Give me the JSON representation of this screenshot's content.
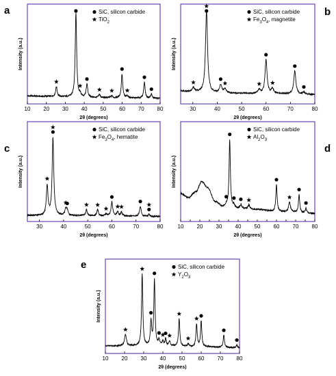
{
  "colors": {
    "frame": "#6a44b4",
    "trace": "#000000",
    "marker": "#000000"
  },
  "chart_data": [
    {
      "panel": "a",
      "type": "line",
      "xlabel": "2θ (degrees)",
      "ylabel": "Intensity (a.u.)",
      "xlim": [
        10,
        80
      ],
      "ylim": [
        0,
        100
      ],
      "xticks": [
        10,
        20,
        30,
        40,
        50,
        60,
        70,
        80
      ],
      "legend_position": "top-right",
      "legend": [
        {
          "symbol": "circle",
          "label": "SiC, silicon carbide"
        },
        {
          "symbol": "star",
          "label": "TiO",
          "sub": "2"
        }
      ],
      "baseline": [
        [
          10,
          8
        ],
        [
          20,
          7.5
        ],
        [
          30,
          7
        ],
        [
          40,
          6.5
        ],
        [
          50,
          6.2
        ],
        [
          60,
          6
        ],
        [
          70,
          5.8
        ],
        [
          80,
          5.6
        ]
      ],
      "peaks": [
        {
          "x": 25.3,
          "y": 10,
          "w": 0.5,
          "marker": "star"
        },
        {
          "x": 35.6,
          "y": 85,
          "w": 0.45,
          "marker": "circle"
        },
        {
          "x": 37.8,
          "y": 3,
          "w": 0.5,
          "marker": "star"
        },
        {
          "x": 41.4,
          "y": 13,
          "w": 0.5,
          "marker": "circle"
        },
        {
          "x": 48.0,
          "y": 3,
          "w": 0.5,
          "marker": "star"
        },
        {
          "x": 54.5,
          "y": 2,
          "w": 0.5,
          "marker": "star"
        },
        {
          "x": 59.9,
          "y": 24,
          "w": 0.45,
          "marker": "circle"
        },
        {
          "x": 62.7,
          "y": 2,
          "w": 0.5,
          "marker": "star"
        },
        {
          "x": 71.7,
          "y": 16,
          "w": 0.45,
          "marker": "circle"
        },
        {
          "x": 75.4,
          "y": 4,
          "w": 0.45,
          "marker": "circle"
        }
      ]
    },
    {
      "panel": "b",
      "type": "line",
      "xlabel": "2θ (degrees)",
      "ylabel": "Intensity (a.u.)",
      "xlim": [
        25,
        80
      ],
      "ylim": [
        0,
        100
      ],
      "xticks": [
        30,
        40,
        50,
        60,
        70,
        80
      ],
      "legend_position": "top-right",
      "legend": [
        {
          "symbol": "circle",
          "label": "SiC, silicon carbide"
        },
        {
          "symbol": "star",
          "label": "Fe",
          "sub": "3",
          "rest": "O",
          "sub2": "4",
          "tail": ", magnetite"
        }
      ],
      "baseline": [
        [
          25,
          13
        ],
        [
          30,
          12
        ],
        [
          40,
          11
        ],
        [
          50,
          10.5
        ],
        [
          60,
          10
        ],
        [
          70,
          10
        ],
        [
          80,
          9.5
        ]
      ],
      "peaks": [
        {
          "x": 30.2,
          "y": 4,
          "w": 0.6,
          "marker": "star"
        },
        {
          "x": 35.6,
          "y": 82,
          "w": 0.5,
          "marker": "circle+star"
        },
        {
          "x": 41.4,
          "y": 8,
          "w": 0.5,
          "marker": "circle"
        },
        {
          "x": 43.2,
          "y": 4,
          "w": 0.6,
          "marker": "star"
        },
        {
          "x": 57.2,
          "y": 4,
          "w": 0.6,
          "marker": "star"
        },
        {
          "x": 60.0,
          "y": 34,
          "w": 0.5,
          "marker": "circle"
        },
        {
          "x": 62.7,
          "y": 5,
          "w": 0.6,
          "marker": "star"
        },
        {
          "x": 71.8,
          "y": 23,
          "w": 0.5,
          "marker": "circle"
        },
        {
          "x": 75.5,
          "y": 2,
          "w": 0.5,
          "marker": "circle"
        }
      ]
    },
    {
      "panel": "c",
      "type": "line",
      "xlabel": "2θ (degrees)",
      "ylabel": "Intensity (a.u.)",
      "xlim": [
        25,
        80
      ],
      "ylim": [
        0,
        100
      ],
      "xticks": [
        30,
        40,
        50,
        60,
        70,
        80
      ],
      "legend_position": "top-right",
      "legend": [
        {
          "symbol": "circle",
          "label": "SiC, silicon carbide"
        },
        {
          "symbol": "star",
          "label": "Fe",
          "sub": "3",
          "rest": "O",
          "sub2": "4",
          "tail": ", hematite"
        }
      ],
      "baseline": [
        [
          25,
          6
        ],
        [
          40,
          6
        ],
        [
          60,
          5.5
        ],
        [
          80,
          5
        ]
      ],
      "peaks": [
        {
          "x": 33.2,
          "y": 30,
          "w": 0.4,
          "marker": "star"
        },
        {
          "x": 35.6,
          "y": 78,
          "w": 0.4,
          "marker": "circle+star"
        },
        {
          "x": 40.9,
          "y": 6,
          "w": 0.4,
          "marker": "star"
        },
        {
          "x": 41.5,
          "y": 5,
          "w": 0.4,
          "marker": "circle"
        },
        {
          "x": 49.5,
          "y": 6,
          "w": 0.4,
          "marker": "star"
        },
        {
          "x": 54.1,
          "y": 6,
          "w": 0.4,
          "marker": "star"
        },
        {
          "x": 57.6,
          "y": 2,
          "w": 0.4,
          "marker": "star"
        },
        {
          "x": 60.0,
          "y": 14,
          "w": 0.4,
          "marker": "circle"
        },
        {
          "x": 62.4,
          "y": 4,
          "w": 0.4,
          "marker": "star"
        },
        {
          "x": 64.0,
          "y": 4,
          "w": 0.4,
          "marker": "star"
        },
        {
          "x": 71.8,
          "y": 10,
          "w": 0.4,
          "marker": "circle"
        },
        {
          "x": 75.4,
          "y": 2,
          "w": 0.4,
          "marker": "circle+star"
        }
      ]
    },
    {
      "panel": "d",
      "type": "line",
      "xlabel": "2θ (degrees)",
      "ylabel": "Intensity (a.u.)",
      "xlim": [
        10,
        80
      ],
      "ylim": [
        0,
        100
      ],
      "xticks": [
        10,
        15,
        20,
        25,
        30,
        35,
        40,
        45,
        50,
        55,
        60,
        65,
        70,
        75,
        80
      ],
      "xtick_labels": [
        10,
        20,
        30,
        40,
        50,
        60,
        70,
        80
      ],
      "legend_position": "top-right",
      "legend": [
        {
          "symbol": "circle",
          "label": "SiC, silicon carbide"
        },
        {
          "symbol": "star",
          "label": "Al",
          "sub": "2",
          "rest": "O",
          "sub2": "3"
        }
      ],
      "baseline": [
        [
          10,
          28
        ],
        [
          14,
          24
        ],
        [
          18,
          30
        ],
        [
          21,
          40
        ],
        [
          24,
          34
        ],
        [
          28,
          20
        ],
        [
          32,
          15
        ],
        [
          40,
          13
        ],
        [
          50,
          12
        ],
        [
          60,
          10
        ],
        [
          70,
          9
        ],
        [
          80,
          8
        ]
      ],
      "peaks": [
        {
          "x": 33.8,
          "y": 2,
          "w": 0.5,
          "marker": "circle"
        },
        {
          "x": 35.6,
          "y": 68,
          "w": 0.4,
          "marker": "circle"
        },
        {
          "x": 37.8,
          "y": 3,
          "w": 0.5,
          "marker": "circle"
        },
        {
          "x": 41.4,
          "y": 4,
          "w": 0.5,
          "marker": "circle"
        },
        {
          "x": 45.6,
          "y": 4,
          "w": 0.6,
          "marker": "star"
        },
        {
          "x": 60.0,
          "y": 27,
          "w": 0.4,
          "marker": "circle"
        },
        {
          "x": 66.8,
          "y": 10,
          "w": 0.6,
          "marker": "star"
        },
        {
          "x": 71.8,
          "y": 18,
          "w": 0.4,
          "marker": "circle"
        },
        {
          "x": 75.4,
          "y": 5,
          "w": 0.4,
          "marker": "circle"
        }
      ]
    },
    {
      "panel": "e",
      "type": "line",
      "xlabel": "2θ (degrees)",
      "ylabel": "Intensity (a.u.)",
      "xlim": [
        10,
        80
      ],
      "ylim": [
        0,
        100
      ],
      "xticks": [
        10,
        20,
        30,
        40,
        50,
        60,
        70,
        80
      ],
      "legend_position": "top-right",
      "legend": [
        {
          "symbol": "circle",
          "label": "SiC, silicon carbide"
        },
        {
          "symbol": "star",
          "label": "Y",
          "sub": "2",
          "rest": "O",
          "sub2": "3"
        }
      ],
      "baseline": [
        [
          10,
          8
        ],
        [
          20,
          8
        ],
        [
          40,
          8
        ],
        [
          60,
          7
        ],
        [
          80,
          6
        ]
      ],
      "peaks": [
        {
          "x": 20.5,
          "y": 12,
          "w": 0.6,
          "marker": "star"
        },
        {
          "x": 29.2,
          "y": 76,
          "w": 0.4,
          "marker": "star"
        },
        {
          "x": 33.8,
          "y": 26,
          "w": 0.4,
          "marker": "circle"
        },
        {
          "x": 35.6,
          "y": 70,
          "w": 0.4,
          "marker": "circle"
        },
        {
          "x": 38.0,
          "y": 6,
          "w": 0.4,
          "marker": "circle"
        },
        {
          "x": 40.0,
          "y": 5,
          "w": 0.4,
          "marker": "star"
        },
        {
          "x": 41.4,
          "y": 7,
          "w": 0.4,
          "marker": "circle"
        },
        {
          "x": 43.5,
          "y": 5,
          "w": 0.4,
          "marker": "star"
        },
        {
          "x": 48.5,
          "y": 29,
          "w": 0.4,
          "marker": "star"
        },
        {
          "x": 53.2,
          "y": 3,
          "w": 0.4,
          "marker": "star"
        },
        {
          "x": 57.6,
          "y": 24,
          "w": 0.4,
          "marker": "star"
        },
        {
          "x": 60.0,
          "y": 27,
          "w": 0.4,
          "marker": "circle"
        },
        {
          "x": 71.8,
          "y": 13,
          "w": 0.4,
          "marker": "circle"
        },
        {
          "x": 78.6,
          "y": 3,
          "w": 0.4,
          "marker": "circle"
        }
      ]
    }
  ]
}
